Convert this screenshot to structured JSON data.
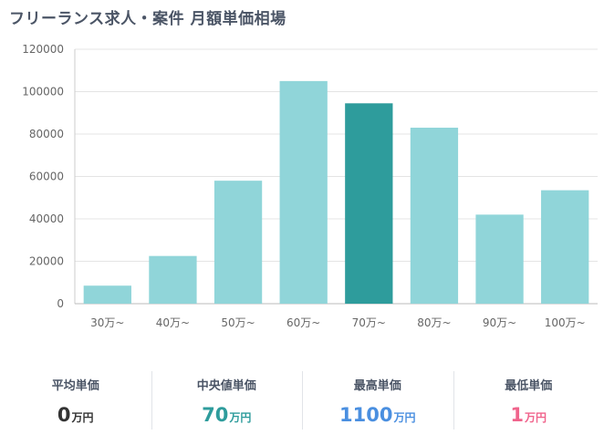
{
  "page": {
    "title": "フリーランス求人・案件 月額単価相場"
  },
  "chart_data": {
    "type": "bar",
    "categories": [
      "30万~",
      "40万~",
      "50万~",
      "60万~",
      "70万~",
      "80万~",
      "90万~",
      "100万~"
    ],
    "values": [
      8500,
      22500,
      58000,
      105000,
      94500,
      83000,
      42000,
      53500
    ],
    "highlight_index": 4,
    "ylim": [
      0,
      120000
    ],
    "yticks": [
      0,
      20000,
      40000,
      60000,
      80000,
      100000,
      120000
    ],
    "grid": true,
    "colors": {
      "bar": "#90d5d9",
      "highlight": "#2e9c9c",
      "axis_text": "#666666",
      "grid": "#e4e4e4"
    },
    "title": "",
    "xlabel": "",
    "ylabel": ""
  },
  "stats": [
    {
      "label": "平均単価",
      "value": "0",
      "unit": "万円",
      "color": "#333333"
    },
    {
      "label": "中央値単価",
      "value": "70",
      "unit": "万円",
      "color": "#2e9c9c"
    },
    {
      "label": "最高単価",
      "value": "1100",
      "unit": "万円",
      "color": "#4a8fe0"
    },
    {
      "label": "最低単価",
      "value": "1",
      "unit": "万円",
      "color": "#f0648c"
    }
  ]
}
